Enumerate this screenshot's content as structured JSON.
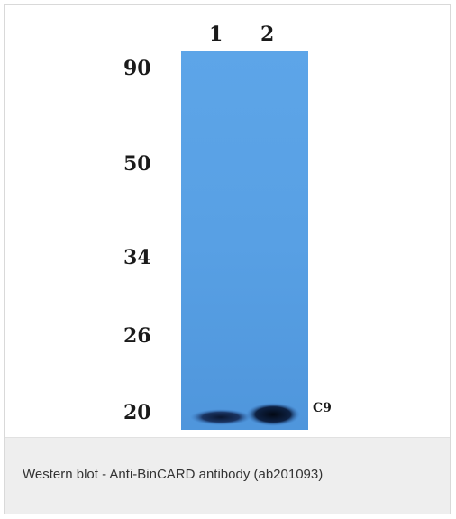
{
  "figure": {
    "lanes": [
      "1",
      "2"
    ],
    "markers": [
      "90",
      "50",
      "34",
      "26",
      "20"
    ],
    "band_label": "C9",
    "colors": {
      "membrane": "#5aa2e6",
      "membrane_dark": "#4c8fd6",
      "band": "#0d1e3a"
    }
  },
  "caption": "Western blot - Anti-BinCARD antibody (ab201093)"
}
